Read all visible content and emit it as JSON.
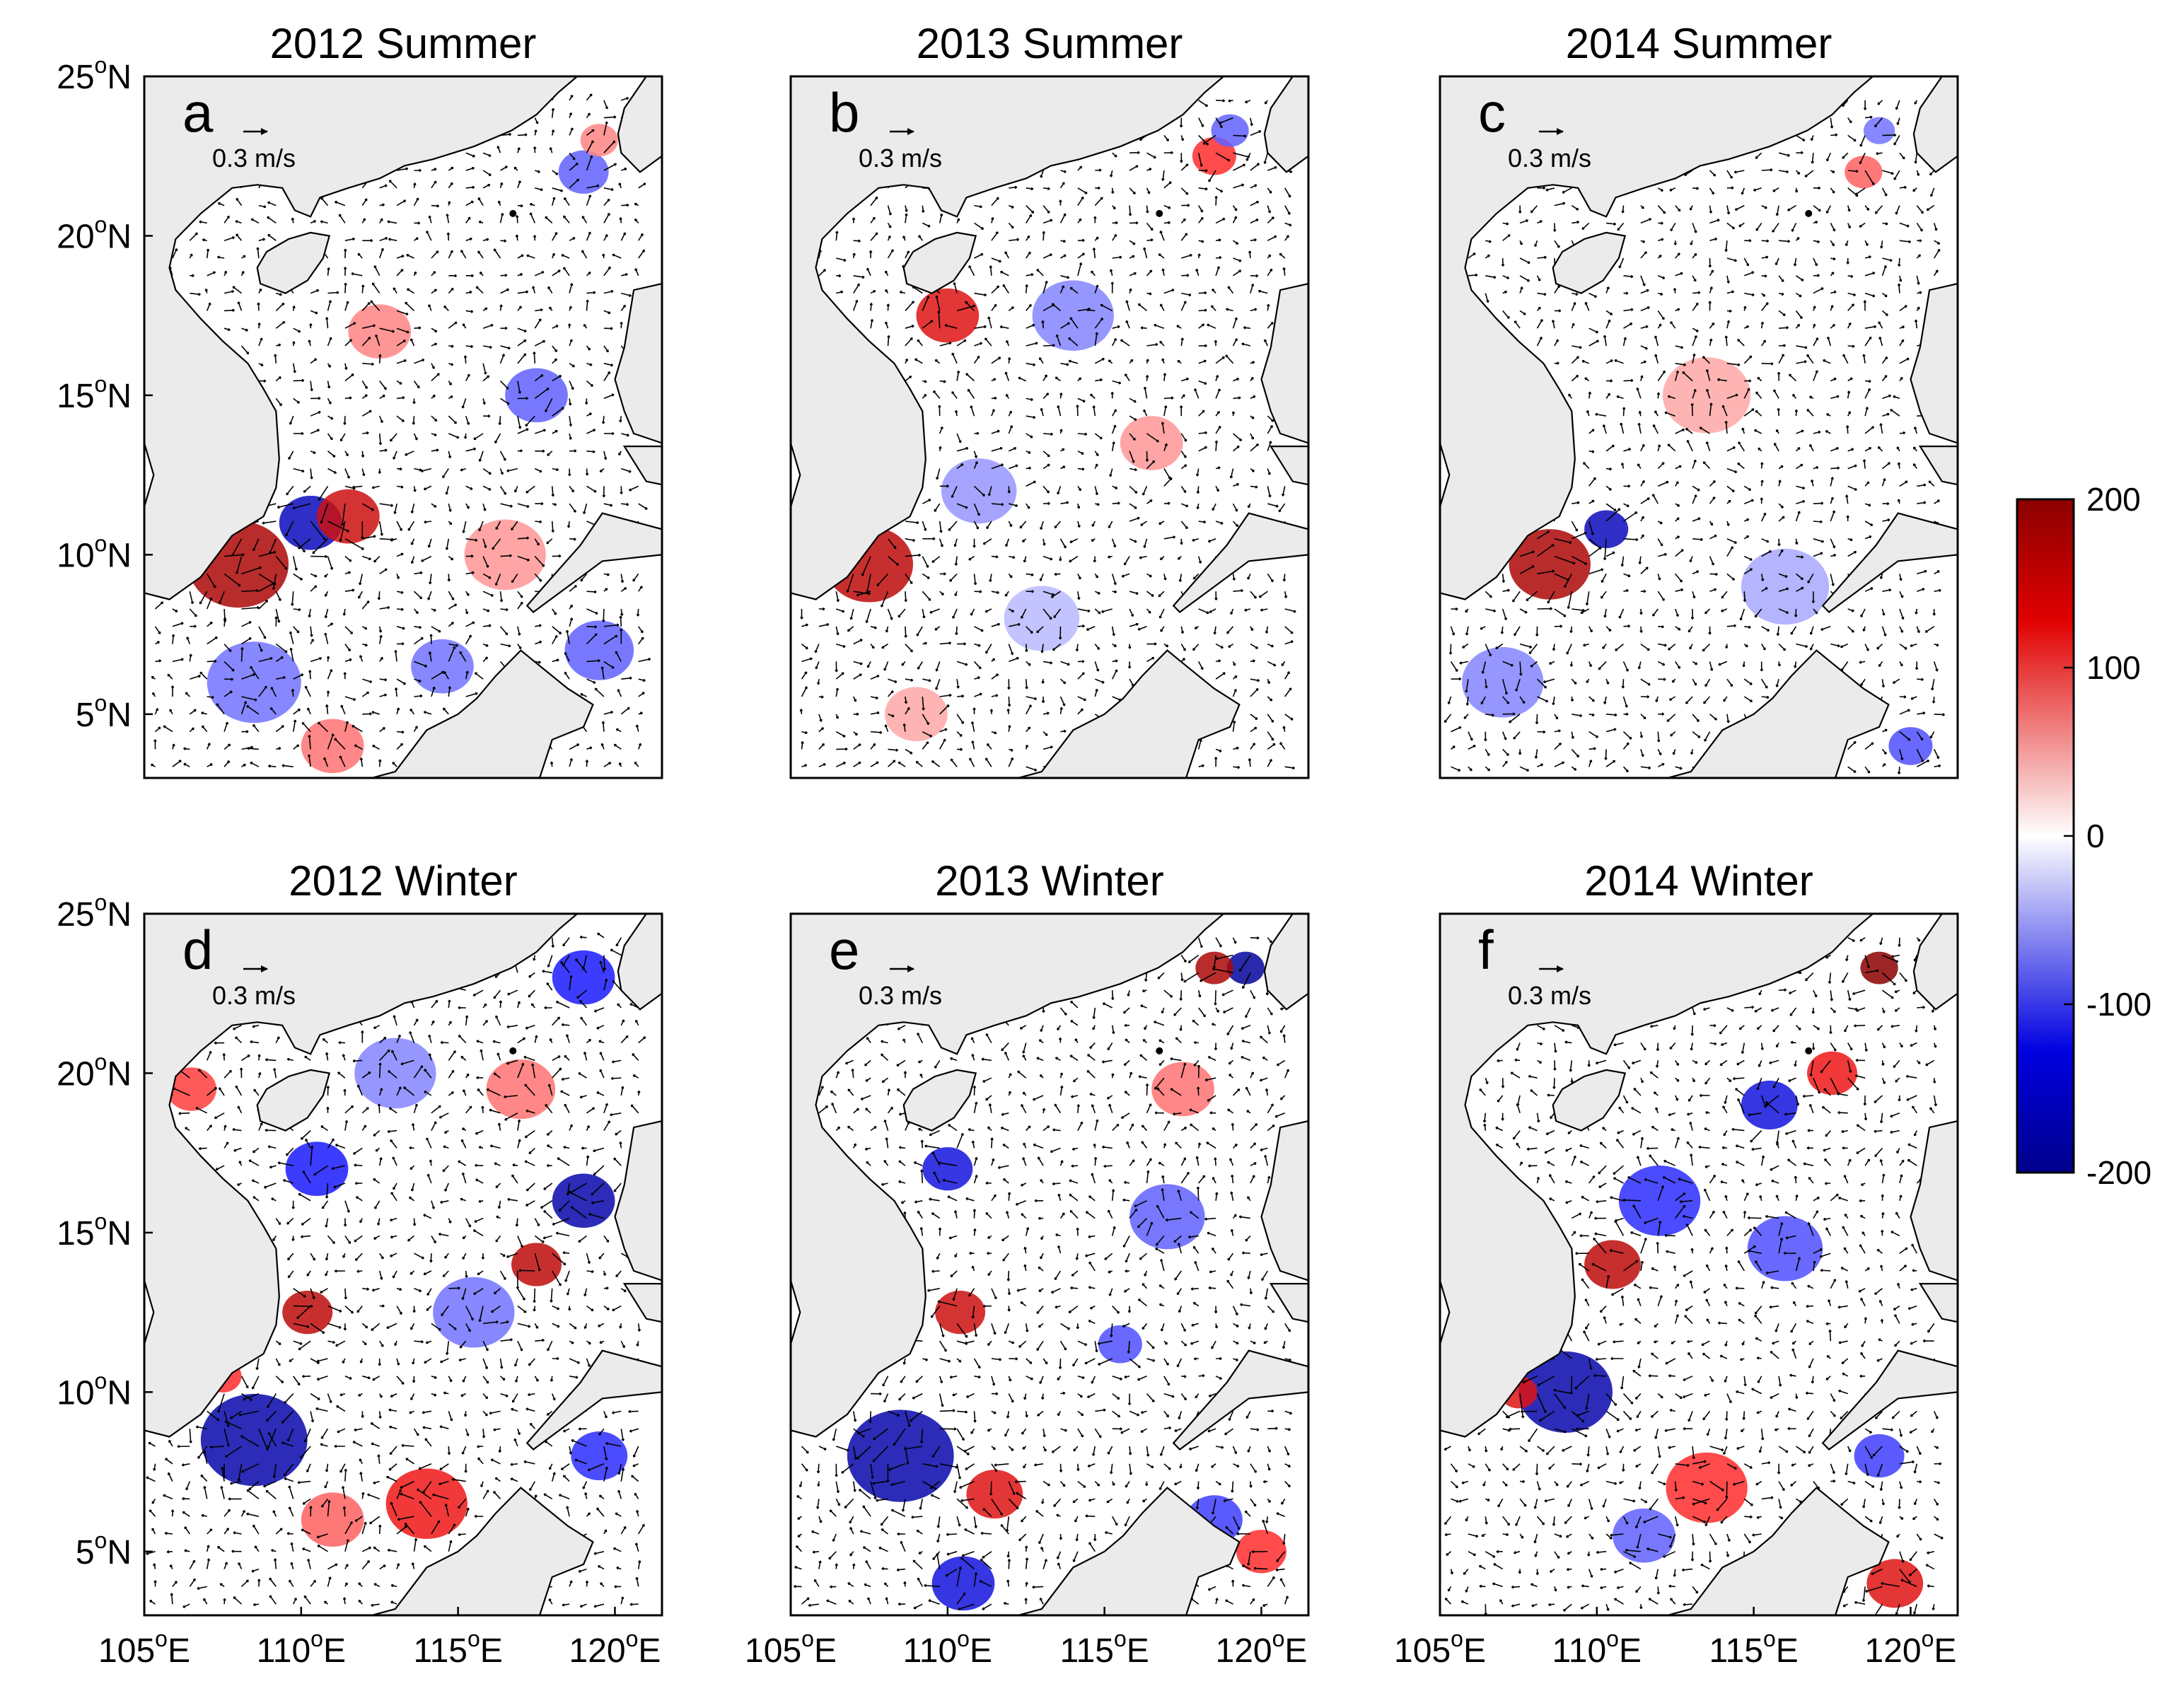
{
  "chart_data": {
    "type": "heatmap",
    "description_units": "ocean current vectors over a colored field (South China Sea)",
    "panels": [
      {
        "letter": "a",
        "title": "2012 Summer"
      },
      {
        "letter": "b",
        "title": "2013 Summer"
      },
      {
        "letter": "c",
        "title": "2014 Summer"
      },
      {
        "letter": "d",
        "title": "2012 Winter"
      },
      {
        "letter": "e",
        "title": "2013 Winter"
      },
      {
        "letter": "f",
        "title": "2014 Winter"
      }
    ],
    "x_ticks": [
      {
        "value": 105,
        "num": "105",
        "sup": "o",
        "suffix": "E"
      },
      {
        "value": 110,
        "num": "110",
        "sup": "o",
        "suffix": "E"
      },
      {
        "value": 115,
        "num": "115",
        "sup": "o",
        "suffix": "E"
      },
      {
        "value": 120,
        "num": "120",
        "sup": "o",
        "suffix": "E"
      }
    ],
    "y_ticks": [
      {
        "value": 25,
        "num": "25",
        "sup": "o",
        "suffix": "N"
      },
      {
        "value": 20,
        "num": "20",
        "sup": "o",
        "suffix": "N"
      },
      {
        "value": 15,
        "num": "15",
        "sup": "o",
        "suffix": "N"
      },
      {
        "value": 10,
        "num": "10",
        "sup": "o",
        "suffix": "N"
      },
      {
        "value": 5,
        "num": "5",
        "sup": "o",
        "suffix": "N"
      }
    ],
    "xlim": [
      105,
      121.5
    ],
    "ylim": [
      3,
      25
    ],
    "reference_vector": {
      "label": "0.3 m/s",
      "speed": 0.3
    },
    "colorbar": {
      "range": [
        -200,
        200
      ],
      "ticks": [
        {
          "value": 200,
          "label": "200"
        },
        {
          "value": 100,
          "label": "100"
        },
        {
          "value": 0,
          "label": "0"
        },
        {
          "value": -100,
          "label": "-100"
        },
        {
          "value": -200,
          "label": "-200"
        }
      ],
      "colors": {
        "high": "#8b0000",
        "pos": "#ff1a1a",
        "zero": "#ffffff",
        "neg": "#1a1aff",
        "low": "#00008b"
      }
    },
    "colors": {
      "land": "#ebebeb",
      "ocean": "#ffffff",
      "coast": "#000000",
      "arrow": "#000000"
    },
    "eddies": [
      [
        {
          "lon": 108,
          "lat": 9.7,
          "v": 180,
          "r": 1.6
        },
        {
          "lon": 110.3,
          "lat": 11,
          "v": -170,
          "r": 1.0
        },
        {
          "lon": 111.5,
          "lat": 11.2,
          "v": 160,
          "r": 1.0
        },
        {
          "lon": 117.5,
          "lat": 15,
          "v": -90,
          "r": 1.0
        },
        {
          "lon": 119,
          "lat": 22,
          "v": -90,
          "r": 0.8
        },
        {
          "lon": 108.5,
          "lat": 6,
          "v": -80,
          "r": 1.5
        },
        {
          "lon": 111,
          "lat": 4,
          "v": 80,
          "r": 1.0
        },
        {
          "lon": 114.5,
          "lat": 6.5,
          "v": -80,
          "r": 1.0
        },
        {
          "lon": 112.5,
          "lat": 17,
          "v": 70,
          "r": 1.0
        },
        {
          "lon": 119.5,
          "lat": 7,
          "v": -90,
          "r": 1.1
        },
        {
          "lon": 119.5,
          "lat": 23,
          "v": 70,
          "r": 0.6
        },
        {
          "lon": 116.5,
          "lat": 10,
          "v": 60,
          "r": 1.3
        }
      ],
      [
        {
          "lon": 107.5,
          "lat": 9.7,
          "v": 170,
          "r": 1.4
        },
        {
          "lon": 110,
          "lat": 17.5,
          "v": 150,
          "r": 1.0
        },
        {
          "lon": 114,
          "lat": 17.5,
          "v": -70,
          "r": 1.3
        },
        {
          "lon": 118.5,
          "lat": 22.5,
          "v": 120,
          "r": 0.7
        },
        {
          "lon": 119,
          "lat": 23.3,
          "v": -90,
          "r": 0.6
        },
        {
          "lon": 111,
          "lat": 12,
          "v": -60,
          "r": 1.2
        },
        {
          "lon": 116.5,
          "lat": 13.5,
          "v": 60,
          "r": 1.0
        },
        {
          "lon": 109,
          "lat": 5,
          "v": 50,
          "r": 1.0
        },
        {
          "lon": 113,
          "lat": 8,
          "v": -40,
          "r": 1.2
        }
      ],
      [
        {
          "lon": 108.5,
          "lat": 9.7,
          "v": 180,
          "r": 1.3
        },
        {
          "lon": 110.3,
          "lat": 10.8,
          "v": -170,
          "r": 0.7
        },
        {
          "lon": 107,
          "lat": 6,
          "v": -70,
          "r": 1.3
        },
        {
          "lon": 118.5,
          "lat": 22,
          "v": 90,
          "r": 0.6
        },
        {
          "lon": 119,
          "lat": 23.3,
          "v": -80,
          "r": 0.5
        },
        {
          "lon": 120,
          "lat": 4,
          "v": -100,
          "r": 0.7
        },
        {
          "lon": 113.5,
          "lat": 15,
          "v": 50,
          "r": 1.4
        },
        {
          "lon": 116,
          "lat": 9,
          "v": -50,
          "r": 1.4
        }
      ],
      [
        {
          "lon": 108.5,
          "lat": 8.5,
          "v": -180,
          "r": 1.7
        },
        {
          "lon": 110.2,
          "lat": 12.5,
          "v": 170,
          "r": 0.8
        },
        {
          "lon": 119,
          "lat": 16,
          "v": -180,
          "r": 1.0
        },
        {
          "lon": 117.5,
          "lat": 14,
          "v": 170,
          "r": 0.8
        },
        {
          "lon": 114,
          "lat": 6.5,
          "v": 140,
          "r": 1.3
        },
        {
          "lon": 111,
          "lat": 6,
          "v": 90,
          "r": 1.0
        },
        {
          "lon": 119,
          "lat": 23,
          "v": -130,
          "r": 1.0
        },
        {
          "lon": 110.5,
          "lat": 17,
          "v": -130,
          "r": 1.0
        },
        {
          "lon": 115.5,
          "lat": 12.5,
          "v": -80,
          "r": 1.3
        },
        {
          "lon": 106.5,
          "lat": 19.5,
          "v": 110,
          "r": 0.8
        },
        {
          "lon": 119.5,
          "lat": 8,
          "v": -120,
          "r": 0.9
        },
        {
          "lon": 113,
          "lat": 20,
          "v": -70,
          "r": 1.3
        },
        {
          "lon": 117,
          "lat": 19.5,
          "v": 80,
          "r": 1.1
        },
        {
          "lon": 107.5,
          "lat": 10.5,
          "v": 120,
          "r": 0.6
        }
      ],
      [
        {
          "lon": 108.5,
          "lat": 8,
          "v": -180,
          "r": 1.7
        },
        {
          "lon": 110.4,
          "lat": 12.5,
          "v": 160,
          "r": 0.8
        },
        {
          "lon": 111.5,
          "lat": 6.8,
          "v": 150,
          "r": 0.9
        },
        {
          "lon": 110.5,
          "lat": 4,
          "v": -150,
          "r": 1.0
        },
        {
          "lon": 119.5,
          "lat": 23.3,
          "v": -190,
          "r": 0.6
        },
        {
          "lon": 118.5,
          "lat": 23.3,
          "v": 180,
          "r": 0.6
        },
        {
          "lon": 110,
          "lat": 17,
          "v": -150,
          "r": 0.8
        },
        {
          "lon": 117,
          "lat": 15.5,
          "v": -90,
          "r": 1.2
        },
        {
          "lon": 120,
          "lat": 5,
          "v": 120,
          "r": 0.8
        },
        {
          "lon": 118.5,
          "lat": 6,
          "v": -110,
          "r": 0.9
        },
        {
          "lon": 115.5,
          "lat": 11.5,
          "v": -100,
          "r": 0.7
        },
        {
          "lon": 117.5,
          "lat": 19.5,
          "v": 80,
          "r": 1.0
        }
      ],
      [
        {
          "lon": 109,
          "lat": 10,
          "v": -180,
          "r": 1.5
        },
        {
          "lon": 110.5,
          "lat": 14,
          "v": 170,
          "r": 0.9
        },
        {
          "lon": 107.5,
          "lat": 10,
          "v": 150,
          "r": 0.6
        },
        {
          "lon": 119,
          "lat": 23.3,
          "v": 200,
          "r": 0.6
        },
        {
          "lon": 115.5,
          "lat": 19,
          "v": -150,
          "r": 0.9
        },
        {
          "lon": 117.5,
          "lat": 20,
          "v": 140,
          "r": 0.8
        },
        {
          "lon": 112,
          "lat": 16,
          "v": -120,
          "r": 1.3
        },
        {
          "lon": 119.5,
          "lat": 4,
          "v": 150,
          "r": 0.9
        },
        {
          "lon": 113.5,
          "lat": 7,
          "v": 120,
          "r": 1.3
        },
        {
          "lon": 116,
          "lat": 14.5,
          "v": -100,
          "r": 1.2
        },
        {
          "lon": 119,
          "lat": 8,
          "v": -110,
          "r": 0.8
        },
        {
          "lon": 111.5,
          "lat": 5.5,
          "v": -90,
          "r": 1.0
        }
      ]
    ]
  }
}
